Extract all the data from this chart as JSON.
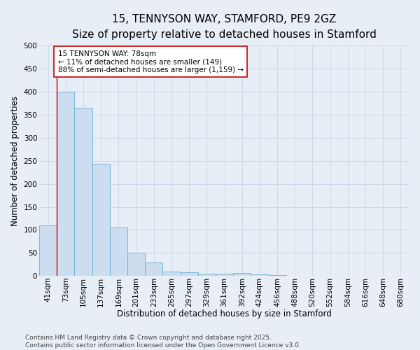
{
  "title_line1": "15, TENNYSON WAY, STAMFORD, PE9 2GZ",
  "title_line2": "Size of property relative to detached houses in Stamford",
  "xlabel": "Distribution of detached houses by size in Stamford",
  "ylabel": "Number of detached properties",
  "categories": [
    "41sqm",
    "73sqm",
    "105sqm",
    "137sqm",
    "169sqm",
    "201sqm",
    "233sqm",
    "265sqm",
    "297sqm",
    "329sqm",
    "361sqm",
    "392sqm",
    "424sqm",
    "456sqm",
    "488sqm",
    "520sqm",
    "552sqm",
    "584sqm",
    "616sqm",
    "648sqm",
    "680sqm"
  ],
  "values": [
    110,
    400,
    365,
    243,
    105,
    50,
    30,
    10,
    8,
    5,
    5,
    7,
    3,
    2,
    1,
    1,
    1,
    0,
    1,
    0,
    0
  ],
  "bar_color": "#ccddf0",
  "bar_edge_color": "#6baed6",
  "grid_color": "#c8d4e8",
  "background_color": "#e8eef6",
  "vline_x_index": 1,
  "vline_color": "#cc0000",
  "annotation_text": "15 TENNYSON WAY: 78sqm\n← 11% of detached houses are smaller (149)\n88% of semi-detached houses are larger (1,159) →",
  "annotation_box_color": "#ffffff",
  "annotation_box_edge": "#cc0000",
  "ylim": [
    0,
    500
  ],
  "yticks": [
    0,
    50,
    100,
    150,
    200,
    250,
    300,
    350,
    400,
    450,
    500
  ],
  "footer_text": "Contains HM Land Registry data © Crown copyright and database right 2025.\nContains public sector information licensed under the Open Government Licence v3.0.",
  "title_fontsize": 11,
  "subtitle_fontsize": 10,
  "axis_label_fontsize": 8.5,
  "tick_fontsize": 7.5,
  "annotation_fontsize": 7.5,
  "footer_fontsize": 6.5
}
